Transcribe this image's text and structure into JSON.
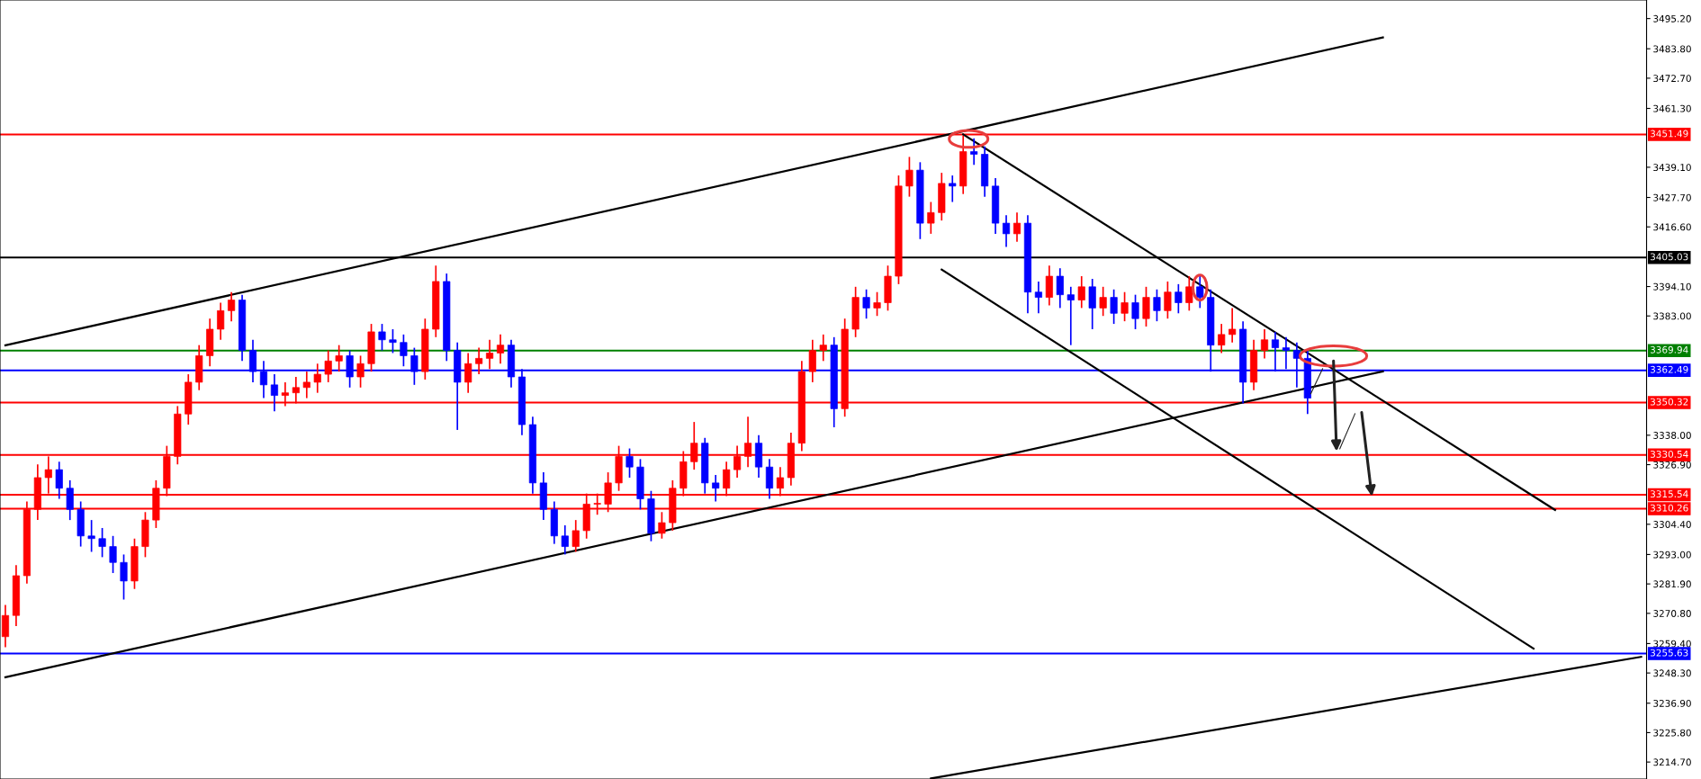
{
  "chart_data": {
    "type": "candlestick",
    "categories": [
      null,
      null,
      null,
      null,
      null,
      null,
      null,
      null,
      null,
      null,
      null,
      null,
      null,
      null,
      null,
      null,
      null,
      null,
      null,
      null,
      null,
      null,
      null,
      null,
      null,
      null,
      null,
      null,
      null,
      null,
      null,
      null,
      null,
      null,
      null,
      null,
      null,
      null,
      null,
      null,
      null,
      null,
      null,
      null,
      null,
      null,
      null,
      null,
      null,
      null,
      null,
      null,
      null,
      null,
      null,
      null,
      null,
      null,
      null,
      null,
      null,
      null,
      null,
      null,
      null,
      null,
      null,
      null,
      null,
      null,
      null,
      null,
      null,
      null,
      null,
      null,
      null,
      null,
      null,
      null,
      null,
      null,
      null,
      null,
      null,
      null,
      null,
      null,
      null,
      null,
      null,
      null,
      null,
      null,
      null,
      null,
      null,
      null,
      null,
      null,
      null,
      null,
      null,
      null,
      null,
      null,
      null,
      null,
      null,
      null,
      null,
      null,
      null,
      null,
      null,
      null,
      null,
      null,
      null,
      null,
      null,
      null,
      null,
      null,
      null,
      null,
      null,
      null,
      null,
      null,
      null,
      null,
      null,
      null,
      null,
      null,
      null,
      null,
      null,
      null,
      null,
      null,
      null,
      null,
      null,
      null,
      null,
      null,
      null,
      null,
      null,
      null,
      null
    ],
    "ohlc": [
      [
        3262,
        3274,
        3258,
        3270
      ],
      [
        3270,
        3289,
        3266,
        3285
      ],
      [
        3285,
        3313,
        3282,
        3310
      ],
      [
        3310,
        3327,
        3306,
        3322
      ],
      [
        3322,
        3330,
        3316,
        3325
      ],
      [
        3325,
        3328,
        3314,
        3318
      ],
      [
        3318,
        3321,
        3306,
        3310
      ],
      [
        3310,
        3313,
        3296,
        3300
      ],
      [
        3300,
        3306,
        3294,
        3299
      ],
      [
        3299,
        3303,
        3292,
        3296
      ],
      [
        3296,
        3300,
        3286,
        3290
      ],
      [
        3290,
        3293,
        3276,
        3283
      ],
      [
        3283,
        3299,
        3280,
        3296
      ],
      [
        3296,
        3309,
        3292,
        3306
      ],
      [
        3306,
        3321,
        3303,
        3318
      ],
      [
        3318,
        3334,
        3315,
        3330
      ],
      [
        3330,
        3349,
        3327,
        3346
      ],
      [
        3346,
        3361,
        3342,
        3358
      ],
      [
        3358,
        3372,
        3355,
        3368
      ],
      [
        3368,
        3382,
        3364,
        3378
      ],
      [
        3378,
        3388,
        3374,
        3385
      ],
      [
        3385,
        3392,
        3381,
        3389
      ],
      [
        3389,
        3391,
        3366,
        3370
      ],
      [
        3370,
        3374,
        3358,
        3362
      ],
      [
        3362,
        3366,
        3352,
        3357
      ],
      [
        3357,
        3361,
        3347,
        3353
      ],
      [
        3353,
        3358,
        3349,
        3354
      ],
      [
        3354,
        3360,
        3350,
        3356
      ],
      [
        3356,
        3362,
        3352,
        3358
      ],
      [
        3358,
        3365,
        3354,
        3361
      ],
      [
        3361,
        3370,
        3358,
        3366
      ],
      [
        3366,
        3372,
        3362,
        3368
      ],
      [
        3368,
        3370,
        3356,
        3360
      ],
      [
        3360,
        3368,
        3356,
        3365
      ],
      [
        3365,
        3380,
        3362,
        3377
      ],
      [
        3377,
        3380,
        3370,
        3374
      ],
      [
        3374,
        3378,
        3369,
        3373
      ],
      [
        3373,
        3376,
        3364,
        3368
      ],
      [
        3368,
        3371,
        3357,
        3362
      ],
      [
        3362,
        3382,
        3359,
        3378
      ],
      [
        3378,
        3402,
        3375,
        3396
      ],
      [
        3396,
        3399,
        3366,
        3370
      ],
      [
        3370,
        3373,
        3340,
        3358
      ],
      [
        3358,
        3369,
        3354,
        3365
      ],
      [
        3365,
        3371,
        3361,
        3367
      ],
      [
        3367,
        3374,
        3363,
        3369
      ],
      [
        3369,
        3376,
        3365,
        3372
      ],
      [
        3372,
        3374,
        3356,
        3360
      ],
      [
        3360,
        3363,
        3338,
        3342
      ],
      [
        3342,
        3345,
        3316,
        3320
      ],
      [
        3320,
        3324,
        3306,
        3310
      ],
      [
        3310,
        3313,
        3297,
        3300
      ],
      [
        3300,
        3304,
        3293,
        3296
      ],
      [
        3296,
        3306,
        3294,
        3302
      ],
      [
        3302,
        3316,
        3299,
        3312
      ],
      [
        3312,
        3316,
        3308,
        3312
      ],
      [
        3312,
        3324,
        3309,
        3320
      ],
      [
        3320,
        3334,
        3317,
        3330
      ],
      [
        3330,
        3333,
        3322,
        3326
      ],
      [
        3326,
        3329,
        3310,
        3314
      ],
      [
        3314,
        3317,
        3298,
        3301
      ],
      [
        3301,
        3309,
        3299,
        3305
      ],
      [
        3305,
        3321,
        3302,
        3318
      ],
      [
        3318,
        3332,
        3315,
        3328
      ],
      [
        3328,
        3343,
        3325,
        3335
      ],
      [
        3335,
        3337,
        3316,
        3320
      ],
      [
        3320,
        3323,
        3313,
        3318
      ],
      [
        3318,
        3328,
        3315,
        3325
      ],
      [
        3325,
        3334,
        3322,
        3330
      ],
      [
        3330,
        3345,
        3326,
        3335
      ],
      [
        3335,
        3338,
        3322,
        3326
      ],
      [
        3326,
        3329,
        3314,
        3318
      ],
      [
        3318,
        3326,
        3315,
        3322
      ],
      [
        3322,
        3339,
        3319,
        3335
      ],
      [
        3335,
        3366,
        3332,
        3362
      ],
      [
        3362,
        3374,
        3358,
        3370
      ],
      [
        3370,
        3376,
        3366,
        3372
      ],
      [
        3372,
        3375,
        3341,
        3348
      ],
      [
        3348,
        3382,
        3345,
        3378
      ],
      [
        3378,
        3394,
        3375,
        3390
      ],
      [
        3390,
        3393,
        3382,
        3386
      ],
      [
        3386,
        3392,
        3383,
        3388
      ],
      [
        3388,
        3402,
        3385,
        3398
      ],
      [
        3398,
        3436,
        3395,
        3432
      ],
      [
        3432,
        3443,
        3428,
        3438
      ],
      [
        3438,
        3441,
        3412,
        3418
      ],
      [
        3418,
        3426,
        3414,
        3422
      ],
      [
        3422,
        3437,
        3419,
        3433
      ],
      [
        3433,
        3436,
        3426,
        3432
      ],
      [
        3432,
        3451,
        3429,
        3445
      ],
      [
        3445,
        3450,
        3440,
        3444
      ],
      [
        3444,
        3447,
        3428,
        3432
      ],
      [
        3432,
        3435,
        3414,
        3418
      ],
      [
        3418,
        3421,
        3409,
        3414
      ],
      [
        3414,
        3422,
        3411,
        3418
      ],
      [
        3418,
        3421,
        3384,
        3392
      ],
      [
        3392,
        3396,
        3384,
        3390
      ],
      [
        3390,
        3402,
        3387,
        3398
      ],
      [
        3398,
        3401,
        3386,
        3391
      ],
      [
        3391,
        3394,
        3372,
        3389
      ],
      [
        3389,
        3398,
        3386,
        3394
      ],
      [
        3394,
        3397,
        3378,
        3386
      ],
      [
        3386,
        3394,
        3383,
        3390
      ],
      [
        3390,
        3393,
        3380,
        3384
      ],
      [
        3384,
        3392,
        3381,
        3388
      ],
      [
        3388,
        3391,
        3378,
        3382
      ],
      [
        3382,
        3394,
        3379,
        3390
      ],
      [
        3390,
        3393,
        3381,
        3385
      ],
      [
        3385,
        3396,
        3382,
        3392
      ],
      [
        3392,
        3395,
        3384,
        3388
      ],
      [
        3388,
        3398,
        3385,
        3394
      ],
      [
        3394,
        3398,
        3386,
        3390
      ],
      [
        3390,
        3393,
        3362,
        3372
      ],
      [
        3372,
        3380,
        3369,
        3376
      ],
      [
        3376,
        3386,
        3373,
        3378
      ],
      [
        3378,
        3381,
        3350,
        3358
      ],
      [
        3358,
        3374,
        3355,
        3370
      ],
      [
        3370,
        3378,
        3367,
        3374
      ],
      [
        3374,
        3377,
        3362,
        3371
      ],
      [
        3371,
        3375,
        3363,
        3370
      ],
      [
        3370,
        3373,
        3356,
        3367
      ],
      [
        3367,
        3370,
        3346,
        3352
      ],
      null,
      null,
      null,
      null,
      null,
      null,
      null,
      null,
      null,
      null,
      null,
      null,
      null,
      null,
      null,
      null,
      null,
      null,
      null,
      null,
      null,
      null,
      null,
      null,
      null,
      null,
      null,
      null,
      null,
      null,
      null
    ],
    "colors": [
      "#ff0000",
      "#ff0000",
      "#ff0000",
      "#ff0000",
      "#ff0000",
      "#0000ff",
      "#0000ff",
      "#0000ff",
      "#0000ff",
      "#0000ff",
      "#0000ff",
      "#0000ff",
      "#ff0000",
      "#ff0000",
      "#ff0000",
      "#ff0000",
      "#ff0000",
      "#ff0000",
      "#ff0000",
      "#ff0000",
      "#ff0000",
      "#ff0000",
      "#0000ff",
      "#0000ff",
      "#0000ff",
      "#0000ff",
      "#ff0000",
      "#ff0000",
      "#ff0000",
      "#ff0000",
      "#ff0000",
      "#ff0000",
      "#0000ff",
      "#ff0000",
      "#ff0000",
      "#0000ff",
      "#0000ff",
      "#0000ff",
      "#0000ff",
      "#ff0000",
      "#ff0000",
      "#0000ff",
      "#0000ff",
      "#ff0000",
      "#ff0000",
      "#ff0000",
      "#ff0000",
      "#0000ff",
      "#0000ff",
      "#0000ff",
      "#0000ff",
      "#0000ff",
      "#0000ff",
      "#ff0000",
      "#ff0000",
      "#ff0000",
      "#ff0000",
      "#ff0000",
      "#0000ff",
      "#0000ff",
      "#0000ff",
      "#ff0000",
      "#ff0000",
      "#ff0000",
      "#ff0000",
      "#0000ff",
      "#0000ff",
      "#ff0000",
      "#ff0000",
      "#ff0000",
      "#0000ff",
      "#0000ff",
      "#ff0000",
      "#ff0000",
      "#ff0000",
      "#ff0000",
      "#ff0000",
      "#0000ff",
      "#ff0000",
      "#ff0000",
      "#0000ff",
      "#ff0000",
      "#ff0000",
      "#ff0000",
      "#ff0000",
      "#0000ff",
      "#ff0000",
      "#ff0000",
      "#0000ff",
      "#ff0000",
      "#0000ff",
      "#0000ff",
      "#0000ff",
      "#0000ff",
      "#ff0000",
      "#0000ff",
      "#0000ff",
      "#ff0000",
      "#0000ff",
      "#0000ff",
      "#ff0000",
      "#0000ff",
      "#ff0000",
      "#0000ff",
      "#ff0000",
      "#0000ff",
      "#ff0000",
      "#0000ff",
      "#ff0000",
      "#0000ff",
      "#ff0000",
      "#0000ff",
      "#0000ff",
      "#ff0000",
      "#ff0000",
      "#0000ff",
      "#ff0000",
      "#ff0000",
      "#0000ff",
      "#0000ff",
      "#0000ff",
      "#0000ff",
      null,
      null,
      null,
      null,
      null,
      null,
      null,
      null,
      null,
      null,
      null,
      null,
      null,
      null,
      null,
      null,
      null,
      null,
      null,
      null,
      null,
      null,
      null,
      null,
      null,
      null,
      null,
      null,
      null,
      null,
      null
    ],
    "series": [
      {
        "type": "line",
        "color": "#000000",
        "values": [
          3371.9,
          null,
          null,
          null,
          null,
          null,
          null,
          null,
          null,
          null,
          null,
          null,
          null,
          null,
          null,
          null,
          null,
          null,
          null,
          null,
          null,
          null,
          null,
          null,
          null,
          null,
          null,
          null,
          null,
          null,
          null,
          null,
          null,
          null,
          null,
          null,
          null,
          null,
          null,
          null,
          null,
          null,
          null,
          null,
          null,
          null,
          null,
          null,
          null,
          null,
          null,
          null,
          null,
          null,
          null,
          null,
          null,
          null,
          null,
          null,
          null,
          null,
          null,
          null,
          null,
          null,
          null,
          null,
          null,
          null,
          null,
          null,
          null,
          null,
          null,
          null,
          null,
          null,
          null,
          null,
          null,
          null,
          null,
          null,
          null,
          null,
          null,
          null,
          null,
          null,
          null,
          null,
          null,
          null,
          null,
          null,
          null,
          null,
          null,
          null,
          null,
          null,
          null,
          null,
          null,
          null,
          null,
          null,
          null,
          null,
          null,
          null,
          null,
          null,
          null,
          null,
          null,
          null,
          null,
          null,
          null,
          null,
          null,
          null,
          null,
          null,
          null,
          null,
          3488.1,
          null,
          null,
          null,
          null,
          null,
          null,
          null,
          null,
          null,
          null,
          null,
          null,
          null,
          null,
          null,
          null,
          null,
          null,
          null,
          null,
          null,
          null,
          null,
          null
        ]
      },
      {
        "type": "line",
        "color": "#000000",
        "values": [
          3246.7,
          null,
          null,
          null,
          null,
          null,
          null,
          null,
          null,
          null,
          null,
          null,
          null,
          null,
          null,
          null,
          null,
          null,
          null,
          null,
          null,
          null,
          null,
          null,
          null,
          null,
          null,
          null,
          null,
          null,
          null,
          null,
          null,
          null,
          null,
          null,
          null,
          null,
          null,
          null,
          null,
          null,
          null,
          null,
          null,
          null,
          null,
          null,
          null,
          null,
          null,
          null,
          null,
          null,
          null,
          null,
          null,
          null,
          null,
          null,
          null,
          null,
          null,
          null,
          null,
          null,
          null,
          null,
          null,
          null,
          null,
          null,
          null,
          null,
          null,
          null,
          null,
          null,
          null,
          null,
          null,
          null,
          null,
          null,
          null,
          null,
          null,
          null,
          null,
          null,
          null,
          null,
          null,
          null,
          null,
          null,
          null,
          null,
          null,
          null,
          null,
          null,
          null,
          null,
          null,
          null,
          null,
          null,
          null,
          null,
          null,
          null,
          null,
          null,
          null,
          null,
          null,
          null,
          null,
          null,
          null,
          null,
          null,
          null,
          null,
          null,
          null,
          null,
          3362.1,
          null,
          null,
          null,
          null,
          null,
          null,
          null,
          null,
          null,
          null,
          null,
          null,
          null,
          null,
          null,
          null,
          null,
          null,
          null,
          null,
          null,
          null,
          null,
          null
        ]
      },
      {
        "type": "line",
        "color": "#000000",
        "values": [
          null,
          null,
          null,
          null,
          null,
          null,
          null,
          null,
          null,
          null,
          null,
          null,
          null,
          null,
          null,
          null,
          null,
          null,
          null,
          null,
          null,
          null,
          null,
          null,
          null,
          null,
          null,
          null,
          null,
          null,
          null,
          null,
          null,
          null,
          null,
          null,
          null,
          null,
          null,
          null,
          null,
          null,
          null,
          null,
          null,
          null,
          null,
          null,
          null,
          null,
          null,
          null,
          null,
          null,
          null,
          null,
          null,
          null,
          null,
          null,
          null,
          null,
          null,
          null,
          null,
          null,
          null,
          null,
          null,
          null,
          null,
          null,
          null,
          null,
          null,
          null,
          null,
          null,
          null,
          null,
          null,
          null,
          null,
          null,
          null,
          null,
          3208.5,
          null,
          null,
          null,
          null,
          null,
          null,
          null,
          null,
          null,
          null,
          null,
          null,
          null,
          null,
          null,
          null,
          null,
          null,
          null,
          null,
          null,
          null,
          null,
          null,
          null,
          null,
          null,
          null,
          null,
          null,
          null,
          null,
          null,
          null,
          null,
          null,
          null,
          null,
          null,
          null,
          null,
          null,
          null,
          null,
          null,
          null,
          null,
          null,
          null,
          null,
          null,
          null,
          null,
          null,
          null,
          null,
          null,
          null,
          null,
          null,
          null,
          null,
          null,
          null,
          null,
          3254.4
        ]
      },
      {
        "type": "line",
        "color": "#000000",
        "values": [
          null,
          null,
          null,
          null,
          null,
          null,
          null,
          null,
          null,
          null,
          null,
          null,
          null,
          null,
          null,
          null,
          null,
          null,
          null,
          null,
          null,
          null,
          null,
          null,
          null,
          null,
          null,
          null,
          null,
          null,
          null,
          null,
          null,
          null,
          null,
          null,
          null,
          null,
          null,
          null,
          null,
          null,
          null,
          null,
          null,
          null,
          null,
          null,
          null,
          null,
          null,
          null,
          null,
          null,
          null,
          null,
          null,
          null,
          null,
          null,
          null,
          null,
          null,
          null,
          null,
          null,
          null,
          null,
          null,
          null,
          null,
          null,
          null,
          null,
          null,
          null,
          null,
          null,
          null,
          null,
          null,
          null,
          null,
          null,
          null,
          null,
          null,
          null,
          null,
          3451.5,
          null,
          null,
          null,
          null,
          null,
          null,
          null,
          null,
          null,
          null,
          null,
          null,
          null,
          null,
          null,
          null,
          null,
          null,
          null,
          null,
          null,
          null,
          null,
          null,
          null,
          null,
          null,
          null,
          null,
          null,
          null,
          null,
          null,
          null,
          null,
          null,
          null,
          null,
          null,
          null,
          null,
          null,
          null,
          null,
          null,
          null,
          null,
          null,
          null,
          null,
          null,
          null,
          null,
          null,
          3309.8,
          null,
          null,
          null,
          null,
          null,
          null,
          null,
          null
        ]
      },
      {
        "type": "line",
        "color": "#000000",
        "values": [
          null,
          null,
          null,
          null,
          null,
          null,
          null,
          null,
          null,
          null,
          null,
          null,
          null,
          null,
          null,
          null,
          null,
          null,
          null,
          null,
          null,
          null,
          null,
          null,
          null,
          null,
          null,
          null,
          null,
          null,
          null,
          null,
          null,
          null,
          null,
          null,
          null,
          null,
          null,
          null,
          null,
          null,
          null,
          null,
          null,
          null,
          null,
          null,
          null,
          null,
          null,
          null,
          null,
          null,
          null,
          null,
          null,
          null,
          null,
          null,
          null,
          null,
          null,
          null,
          null,
          null,
          null,
          null,
          null,
          null,
          null,
          null,
          null,
          null,
          null,
          null,
          null,
          null,
          null,
          null,
          null,
          null,
          null,
          null,
          null,
          null,
          null,
          3400.5,
          null,
          null,
          null,
          null,
          null,
          null,
          null,
          null,
          null,
          null,
          null,
          null,
          null,
          null,
          null,
          null,
          null,
          null,
          null,
          null,
          null,
          null,
          null,
          null,
          null,
          null,
          null,
          null,
          null,
          null,
          null,
          null,
          null,
          null,
          null,
          null,
          null,
          null,
          null,
          null,
          null,
          null,
          null,
          null,
          null,
          null,
          null,
          null,
          null,
          null,
          null,
          null,
          null,
          null,
          3257.5,
          null,
          null,
          null,
          null,
          null,
          null,
          null,
          null,
          null,
          null
        ]
      }
    ],
    "ylim": [
      3208.3,
      3502.2
    ],
    "yticks": [
      {
        "value": 3495.2,
        "label": "3495.20"
      },
      {
        "value": 3483.8,
        "label": "3483.80"
      },
      {
        "value": 3472.7,
        "label": "3472.70"
      },
      {
        "value": 3461.3,
        "label": "3461.30"
      },
      {
        "value": 3439.1,
        "label": "3439.10"
      },
      {
        "value": 3427.7,
        "label": "3427.70"
      },
      {
        "value": 3416.6,
        "label": "3416.60"
      },
      {
        "value": 3394.1,
        "label": "3394.10"
      },
      {
        "value": 3383,
        "label": "3383.00"
      },
      {
        "value": 3338,
        "label": "3338.00"
      },
      {
        "value": 3326.9,
        "label": "3326.90"
      },
      {
        "value": 3304.4,
        "label": "3304.40"
      },
      {
        "value": 3293,
        "label": "3293.00"
      },
      {
        "value": 3281.9,
        "label": "3281.90"
      },
      {
        "value": 3270.8,
        "label": "3270.80"
      },
      {
        "value": 3259.4,
        "label": "3259.40"
      },
      {
        "value": 3248.3,
        "label": "3248.30"
      },
      {
        "value": 3236.9,
        "label": "3236.90"
      },
      {
        "value": 3225.8,
        "label": "3225.80"
      },
      {
        "value": 3214.7,
        "label": "3214.70"
      }
    ],
    "tick_labels": "y",
    "ref_lines": [
      {
        "axis": "y",
        "value": 3451.49,
        "label": "3451.49",
        "color": "#ff0000"
      },
      {
        "axis": "y",
        "value": 3405.03,
        "label": "3405.03",
        "color": "#000000"
      },
      {
        "axis": "y",
        "value": 3369.94,
        "label": "3369.94",
        "color": "#008000"
      },
      {
        "axis": "y",
        "value": 3362.49,
        "label": "3362.49",
        "color": "#0000ff"
      },
      {
        "axis": "y",
        "value": 3350.32,
        "label": "3350.32",
        "color": "#ff0000"
      },
      {
        "axis": "y",
        "value": 3330.54,
        "label": "3330.54",
        "color": "#ff0000"
      },
      {
        "axis": "y",
        "value": 3315.54,
        "label": "3315.54",
        "color": "#ff0000"
      },
      {
        "axis": "y",
        "value": 3310.26,
        "label": "3310.26",
        "color": "#ff0000"
      },
      {
        "axis": "y",
        "value": 3255.63,
        "label": "3255.63",
        "color": "#0000ff"
      }
    ]
  }
}
